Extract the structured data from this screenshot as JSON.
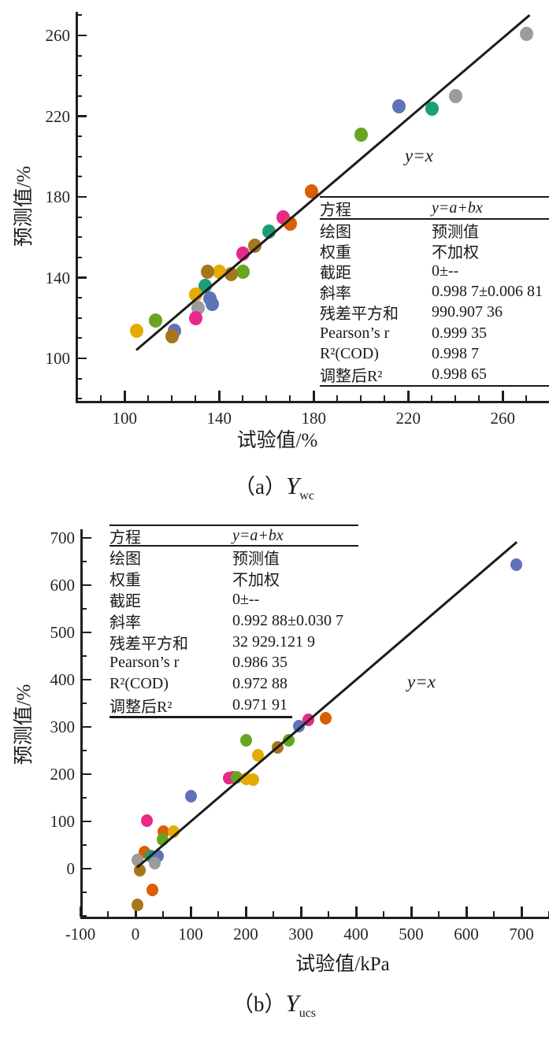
{
  "palette": {
    "teal": "#1B9E77",
    "orange": "#D95F02",
    "blue": "#6073B8",
    "magenta": "#E7298A",
    "green": "#66A61E",
    "yellow": "#E6AB02",
    "brown": "#A6761D",
    "gray": "#9C9C9C"
  },
  "chart_data": [
    {
      "id": "a",
      "type": "scatter",
      "caption": {
        "prefix": "（a）",
        "symbol": "Y",
        "subscript": "wc"
      },
      "xlabel": "试验值/%",
      "ylabel": "预测值/%",
      "x_ticks": [
        100,
        140,
        180,
        220,
        260
      ],
      "y_ticks": [
        100,
        140,
        180,
        220,
        260
      ],
      "x_minor_step": 10,
      "y_minor_step": 10,
      "xlim": [
        80,
        280
      ],
      "ylim": [
        78,
        272
      ],
      "annotation": "y=x",
      "identity_line": {
        "from": [
          105,
          104
        ],
        "to": [
          271.5,
          270
        ]
      },
      "points": [
        {
          "x": 270,
          "y": 261,
          "c": "gray"
        },
        {
          "x": 240,
          "y": 230,
          "c": "gray"
        },
        {
          "x": 230,
          "y": 224,
          "c": "teal"
        },
        {
          "x": 216,
          "y": 225,
          "c": "blue"
        },
        {
          "x": 200,
          "y": 211,
          "c": "green"
        },
        {
          "x": 179,
          "y": 183,
          "c": "orange"
        },
        {
          "x": 167,
          "y": 170,
          "c": "magenta"
        },
        {
          "x": 170,
          "y": 167,
          "c": "orange"
        },
        {
          "x": 161,
          "y": 163,
          "c": "teal"
        },
        {
          "x": 155,
          "y": 156,
          "c": "brown"
        },
        {
          "x": 150,
          "y": 152,
          "c": "magenta"
        },
        {
          "x": 150,
          "y": 143,
          "c": "green"
        },
        {
          "x": 145,
          "y": 142,
          "c": "brown"
        },
        {
          "x": 140,
          "y": 143,
          "c": "yellow"
        },
        {
          "x": 135,
          "y": 143,
          "c": "brown"
        },
        {
          "x": 134,
          "y": 136,
          "c": "teal"
        },
        {
          "x": 130,
          "y": 132,
          "c": "yellow"
        },
        {
          "x": 136,
          "y": 130,
          "c": "blue"
        },
        {
          "x": 137,
          "y": 127,
          "c": "blue"
        },
        {
          "x": 131,
          "y": 125,
          "c": "gray"
        },
        {
          "x": 130,
          "y": 120,
          "c": "magenta"
        },
        {
          "x": 121,
          "y": 114,
          "c": "blue"
        },
        {
          "x": 120,
          "y": 111,
          "c": "brown"
        },
        {
          "x": 113,
          "y": 119,
          "c": "green"
        },
        {
          "x": 105,
          "y": 114,
          "c": "yellow"
        }
      ],
      "stats_rows": [
        {
          "label": "方程",
          "value": "y=a+bx",
          "em": true
        },
        {
          "label": "绘图",
          "value": "预测值"
        },
        {
          "label": "权重",
          "value": "不加权"
        },
        {
          "label": "截距",
          "value": "0±--"
        },
        {
          "label": "斜率",
          "value": "0.998 7±0.006 81"
        },
        {
          "label": "残差平方和",
          "value": "990.907 36"
        },
        {
          "label": "Pearson’s r",
          "value": "0.999 35"
        },
        {
          "label": "R²(COD)",
          "value": "0.998 7"
        },
        {
          "label": "调整后R²",
          "value": "0.998 65"
        }
      ]
    },
    {
      "id": "b",
      "type": "scatter",
      "caption": {
        "prefix": "（b）",
        "symbol": "Y",
        "subscript": "ucs"
      },
      "xlabel": "试验值/kPa",
      "ylabel": "预测值/%",
      "x_ticks": [
        -100,
        0,
        100,
        200,
        300,
        400,
        500,
        600,
        700
      ],
      "y_ticks": [
        0,
        100,
        200,
        300,
        400,
        500,
        600,
        700
      ],
      "x_minor_step": 50,
      "y_minor_step": 50,
      "xlim": [
        -100,
        752
      ],
      "ylim": [
        -103,
        718
      ],
      "annotation": "y=x",
      "identity_line": {
        "from": [
          3,
          3
        ],
        "to": [
          692,
          692
        ]
      },
      "points": [
        {
          "x": 690,
          "y": 645,
          "c": "blue"
        },
        {
          "x": 345,
          "y": 319,
          "c": "orange"
        },
        {
          "x": 314,
          "y": 316,
          "c": "magenta"
        },
        {
          "x": 297,
          "y": 302,
          "c": "blue"
        },
        {
          "x": 278,
          "y": 272,
          "c": "green"
        },
        {
          "x": 258,
          "y": 258,
          "c": "brown"
        },
        {
          "x": 222,
          "y": 241,
          "c": "yellow"
        },
        {
          "x": 200,
          "y": 272,
          "c": "green"
        },
        {
          "x": 169,
          "y": 192,
          "c": "magenta"
        },
        {
          "x": 177,
          "y": 194,
          "c": "magenta"
        },
        {
          "x": 184,
          "y": 194,
          "c": "green"
        },
        {
          "x": 200,
          "y": 191,
          "c": "yellow"
        },
        {
          "x": 214,
          "y": 190,
          "c": "yellow"
        },
        {
          "x": 100,
          "y": 155,
          "c": "blue"
        },
        {
          "x": 20,
          "y": 103,
          "c": "magenta"
        },
        {
          "x": 50,
          "y": 80,
          "c": "orange"
        },
        {
          "x": 69,
          "y": 79,
          "c": "yellow"
        },
        {
          "x": 49,
          "y": 63,
          "c": "green"
        },
        {
          "x": 16,
          "y": 36,
          "c": "orange"
        },
        {
          "x": 28,
          "y": 27,
          "c": "teal"
        },
        {
          "x": 40,
          "y": 27,
          "c": "blue"
        },
        {
          "x": 4,
          "y": 19,
          "c": "gray"
        },
        {
          "x": 35,
          "y": 12,
          "c": "gray"
        },
        {
          "x": 8,
          "y": -2,
          "c": "brown"
        },
        {
          "x": 30,
          "y": -44,
          "c": "orange"
        },
        {
          "x": 4,
          "y": -75,
          "c": "brown"
        }
      ],
      "stats_rows": [
        {
          "label": "方程",
          "value": "y=a+bx",
          "em": true
        },
        {
          "label": "绘图",
          "value": "预测值"
        },
        {
          "label": "权重",
          "value": "不加权"
        },
        {
          "label": "截距",
          "value": "0±--"
        },
        {
          "label": "斜率",
          "value": "0.992 88±0.030 7"
        },
        {
          "label": "残差平方和",
          "value": "32 929.121 9"
        },
        {
          "label": "Pearson’s r",
          "value": "0.986 35"
        },
        {
          "label": "R²(COD)",
          "value": "0.972 88"
        },
        {
          "label": "调整后R²",
          "value": "0.971 91"
        }
      ]
    }
  ]
}
